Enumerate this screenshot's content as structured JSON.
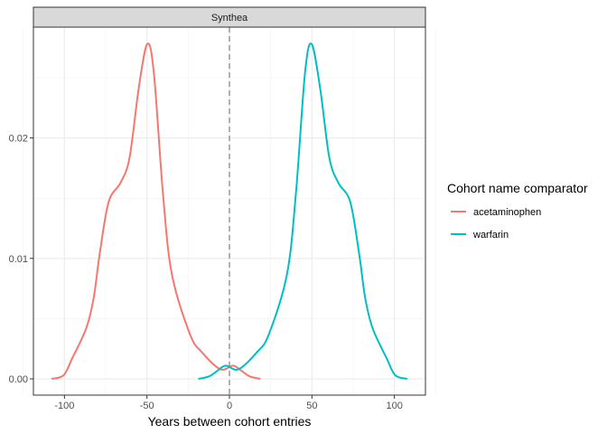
{
  "chart_data": {
    "type": "line",
    "subtype": "density",
    "facet_label": "Synthea",
    "xlabel": "Years between cohort entries",
    "ylabel": "",
    "xlim": [
      -118.8,
      118.8
    ],
    "ylim": [
      -0.00135,
      0.0292
    ],
    "x_ticks": [
      -100,
      -50,
      0,
      50,
      100
    ],
    "x_tick_labels": [
      "-100",
      "-50",
      "0",
      "50",
      "100"
    ],
    "y_ticks": [
      0,
      0.01,
      0.02
    ],
    "y_tick_labels": [
      "0.00",
      "0.01",
      "0.02"
    ],
    "grid": true,
    "reference_line": {
      "x": 0,
      "style": "dashed",
      "color": "#7F7F7F"
    },
    "legend": {
      "title": "Cohort name comparator",
      "placement": "right"
    },
    "series": [
      {
        "name": "acetaminophen",
        "color": "#F8766D",
        "points": [
          [
            -107.8,
            0
          ],
          [
            -100.5,
            0.0003
          ],
          [
            -95.3,
            0.0017
          ],
          [
            -86.8,
            0.0042
          ],
          [
            -82.3,
            0.0067
          ],
          [
            -78.6,
            0.0104
          ],
          [
            -73.2,
            0.0147
          ],
          [
            -65.9,
            0.0163
          ],
          [
            -60.5,
            0.0184
          ],
          [
            -54.9,
            0.0242
          ],
          [
            -49.8,
            0.0278
          ],
          [
            -45.8,
            0.0254
          ],
          [
            -40.3,
            0.0154
          ],
          [
            -34.9,
            0.0087
          ],
          [
            -23.9,
            0.0037
          ],
          [
            -16.6,
            0.0022
          ],
          [
            -5.6,
            0.0008
          ],
          [
            2.2,
            0.0011
          ],
          [
            7,
            0.0007
          ],
          [
            12.4,
            0.0002
          ],
          [
            18.8,
            0
          ]
        ]
      },
      {
        "name": "warfarin",
        "color": "#00BFC4",
        "points": [
          [
            -18.8,
            0
          ],
          [
            -12.4,
            0.0002
          ],
          [
            -7,
            0.0007
          ],
          [
            -2.2,
            0.0011
          ],
          [
            5.6,
            0.0008
          ],
          [
            16.6,
            0.0022
          ],
          [
            23.9,
            0.0037
          ],
          [
            34.9,
            0.0087
          ],
          [
            40.3,
            0.0154
          ],
          [
            45.8,
            0.0254
          ],
          [
            49.8,
            0.0278
          ],
          [
            54.9,
            0.0242
          ],
          [
            60.5,
            0.0184
          ],
          [
            65.9,
            0.0163
          ],
          [
            73.2,
            0.0147
          ],
          [
            78.6,
            0.0104
          ],
          [
            82.3,
            0.0067
          ],
          [
            86.8,
            0.0042
          ],
          [
            95.3,
            0.0017
          ],
          [
            100.5,
            0.0003
          ],
          [
            107.8,
            0
          ]
        ]
      }
    ]
  }
}
